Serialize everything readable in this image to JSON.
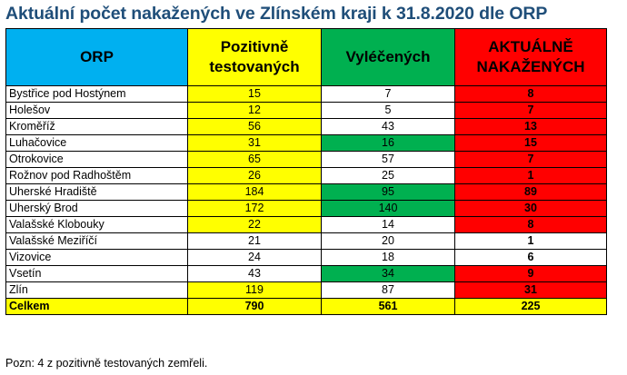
{
  "title": "Aktuální počet nakažených ve Zlínském kraji k 31.8.2020 dle ORP",
  "headers": {
    "orp": "ORP",
    "pozitivne_line1": "Pozitivně",
    "pozitivne_line2": "testovaných",
    "vyleceni": "Vyléčených",
    "aktualne_line1": "AKTUÁLNĚ",
    "aktualne_line2": "NAKAŽENÝCH"
  },
  "rows": [
    {
      "orp": "Bystřice pod Hostýnem",
      "pozitivne": "15",
      "vyleceni": "7",
      "aktualne": "8"
    },
    {
      "orp": "Holešov",
      "pozitivne": "12",
      "vyleceni": "5",
      "aktualne": "7"
    },
    {
      "orp": "Kroměříž",
      "pozitivne": "56",
      "vyleceni": "43",
      "aktualne": "13"
    },
    {
      "orp": "Luhačovice",
      "pozitivne": "31",
      "vyleceni": "16",
      "aktualne": "15"
    },
    {
      "orp": "Otrokovice",
      "pozitivne": "65",
      "vyleceni": "57",
      "aktualne": "7"
    },
    {
      "orp": "Rožnov pod Radhoštěm",
      "pozitivne": "26",
      "vyleceni": "25",
      "aktualne": "1"
    },
    {
      "orp": "Uherské Hradiště",
      "pozitivne": "184",
      "vyleceni": "95",
      "aktualne": "89"
    },
    {
      "orp": "Uherský Brod",
      "pozitivne": "172",
      "vyleceni": "140",
      "aktualne": "30"
    },
    {
      "orp": "Valašské Klobouky",
      "pozitivne": "22",
      "vyleceni": "14",
      "aktualne": "8"
    },
    {
      "orp": "Valašské Meziříčí",
      "pozitivne": "21",
      "vyleceni": "20",
      "aktualne": "1"
    },
    {
      "orp": "Vizovice",
      "pozitivne": "24",
      "vyleceni": "18",
      "aktualne": "6"
    },
    {
      "orp": "Vsetín",
      "pozitivne": "43",
      "vyleceni": "34",
      "aktualne": "9"
    },
    {
      "orp": "Zlín",
      "pozitivne": "119",
      "vyleceni": "87",
      "aktualne": "31"
    }
  ],
  "total": {
    "orp": "Celkem",
    "pozitivne": "790",
    "vyleceni": "561",
    "aktualne": "225"
  },
  "note": "Pozn: 4 z pozitivně testovaných zemřeli.",
  "colors": {
    "orp_header": "#00b0f0",
    "pozitivne": "#ffff00",
    "vyleceni_highlight": "#00b050",
    "aktualne_highlight": "#ff0000",
    "title": "#1f4e79"
  }
}
